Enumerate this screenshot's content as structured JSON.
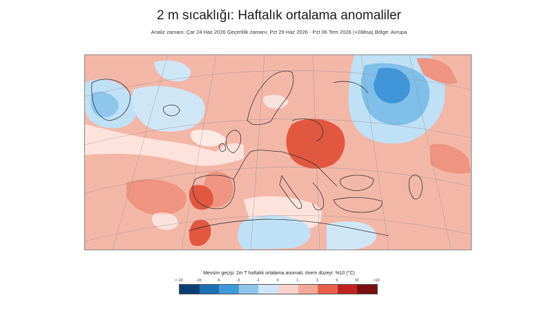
{
  "title": "2 m sıcaklığı: Haftalık ortalama anomaliler",
  "subtitle": "Analiz zamanı: Çar 24 Haz 2026 Geçerlilik zamanı: Pzt 29 Haz 2026 - Pzt 06 Tem 2026 (+288sa) Bölge: Avrupa",
  "legend": {
    "title": "Mevsim geçişi: 2m T haftalık ortalama anomali, önem düzeyi: %10 (°C)",
    "ticks": [
      "<-10",
      "-10",
      "-6",
      "-3",
      "-1",
      "0",
      "1",
      "3",
      "6",
      "10",
      ">10"
    ],
    "colors": [
      "#0b3f73",
      "#1f6fb4",
      "#3f9ad8",
      "#8fc6ec",
      "#cfe6f6",
      "#f9d3cc",
      "#f3a897",
      "#e8604a",
      "#c0231f",
      "#7a0f10"
    ]
  },
  "map": {
    "colors": {
      "sea_warm_light": "#f3b7a8",
      "warm_medium": "#ee9480",
      "warm_strong": "#e2573f",
      "cold_light": "#bfe0f5",
      "cold_medium": "#7fbfe9",
      "cold_strong": "#3f95d8",
      "neutral": "#ffffff",
      "coast": "#333333"
    }
  }
}
